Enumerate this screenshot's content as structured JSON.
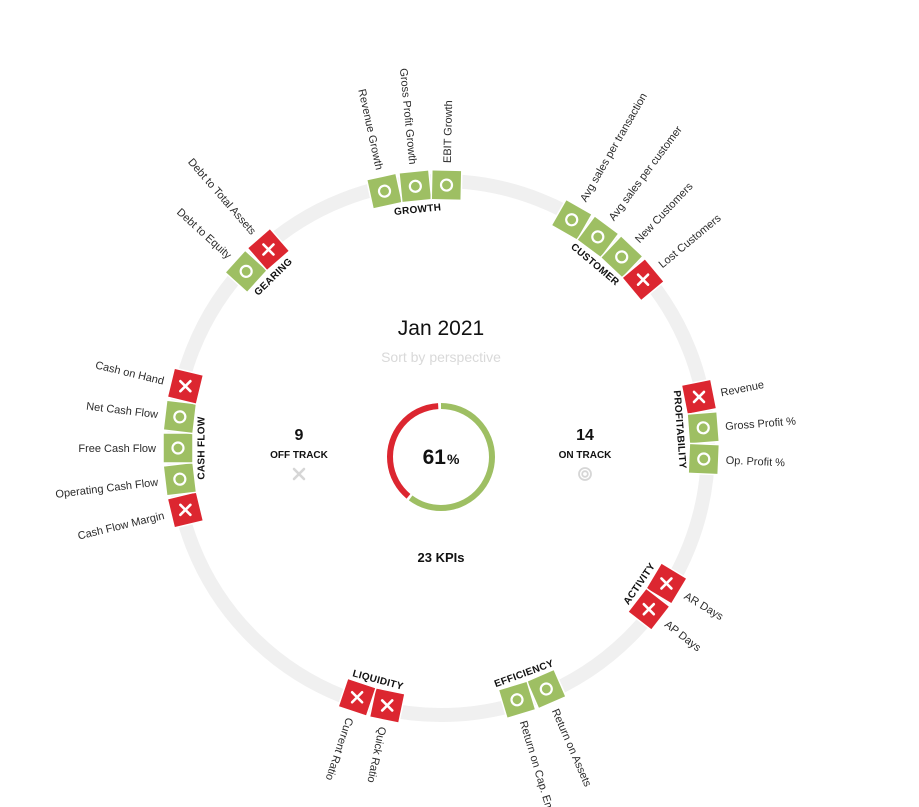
{
  "chart_data": {
    "type": "radial-kpi-wheel",
    "title": "Jan 2021",
    "subtitle": "Sort by perspective",
    "percent_on_track": 61,
    "percent_sign": "%",
    "total_label": "23 KPIs",
    "total_kpis": 23,
    "off_track": {
      "count": "9",
      "label": "OFF TRACK",
      "icon": "x-icon"
    },
    "on_track": {
      "count": "14",
      "label": "ON TRACK",
      "icon": "target-icon"
    },
    "colors": {
      "on_track": "#9ebf63",
      "off_track": "#dc2630",
      "ring": "#f0f0f0",
      "donut_off": "#dc2630",
      "donut_on": "#9ebf63"
    },
    "groups": [
      {
        "name": "CASH FLOW",
        "kpis": [
          {
            "label": "Cash Flow Margin",
            "status": "off"
          },
          {
            "label": "Operating Cash Flow",
            "status": "on"
          },
          {
            "label": "Free Cash Flow",
            "status": "on"
          },
          {
            "label": "Net Cash Flow",
            "status": "on"
          },
          {
            "label": "Cash on Hand",
            "status": "off"
          }
        ]
      },
      {
        "name": "GEARING",
        "kpis": [
          {
            "label": "Debt to Equity",
            "status": "on"
          },
          {
            "label": "Debt to Total Assets",
            "status": "off"
          }
        ]
      },
      {
        "name": "GROWTH",
        "kpis": [
          {
            "label": "Revenue Growth",
            "status": "on"
          },
          {
            "label": "Gross Profit Growth",
            "status": "on"
          },
          {
            "label": "EBIT Growth",
            "status": "on"
          }
        ]
      },
      {
        "name": "CUSTOMER",
        "kpis": [
          {
            "label": "Avg sales per transaction",
            "status": "on"
          },
          {
            "label": "Avg sales per customer",
            "status": "on"
          },
          {
            "label": "New Customers",
            "status": "on"
          },
          {
            "label": "Lost Customers",
            "status": "off"
          }
        ]
      },
      {
        "name": "PROFITABILITY",
        "kpis": [
          {
            "label": "Revenue",
            "status": "off"
          },
          {
            "label": "Gross Profit %",
            "status": "on"
          },
          {
            "label": "Op. Profit %",
            "status": "on"
          }
        ]
      },
      {
        "name": "ACTIVITY",
        "kpis": [
          {
            "label": "AR Days",
            "status": "off"
          },
          {
            "label": "AP Days",
            "status": "off"
          }
        ]
      },
      {
        "name": "EFFICIENCY",
        "kpis": [
          {
            "label": "Return on Assets",
            "status": "on"
          },
          {
            "label": "Return on Cap. Employed",
            "status": "on"
          }
        ]
      },
      {
        "name": "LIQUIDITY",
        "kpis": [
          {
            "label": "Quick Ratio",
            "status": "off"
          },
          {
            "label": "Current Ratio",
            "status": "off"
          }
        ]
      }
    ]
  }
}
